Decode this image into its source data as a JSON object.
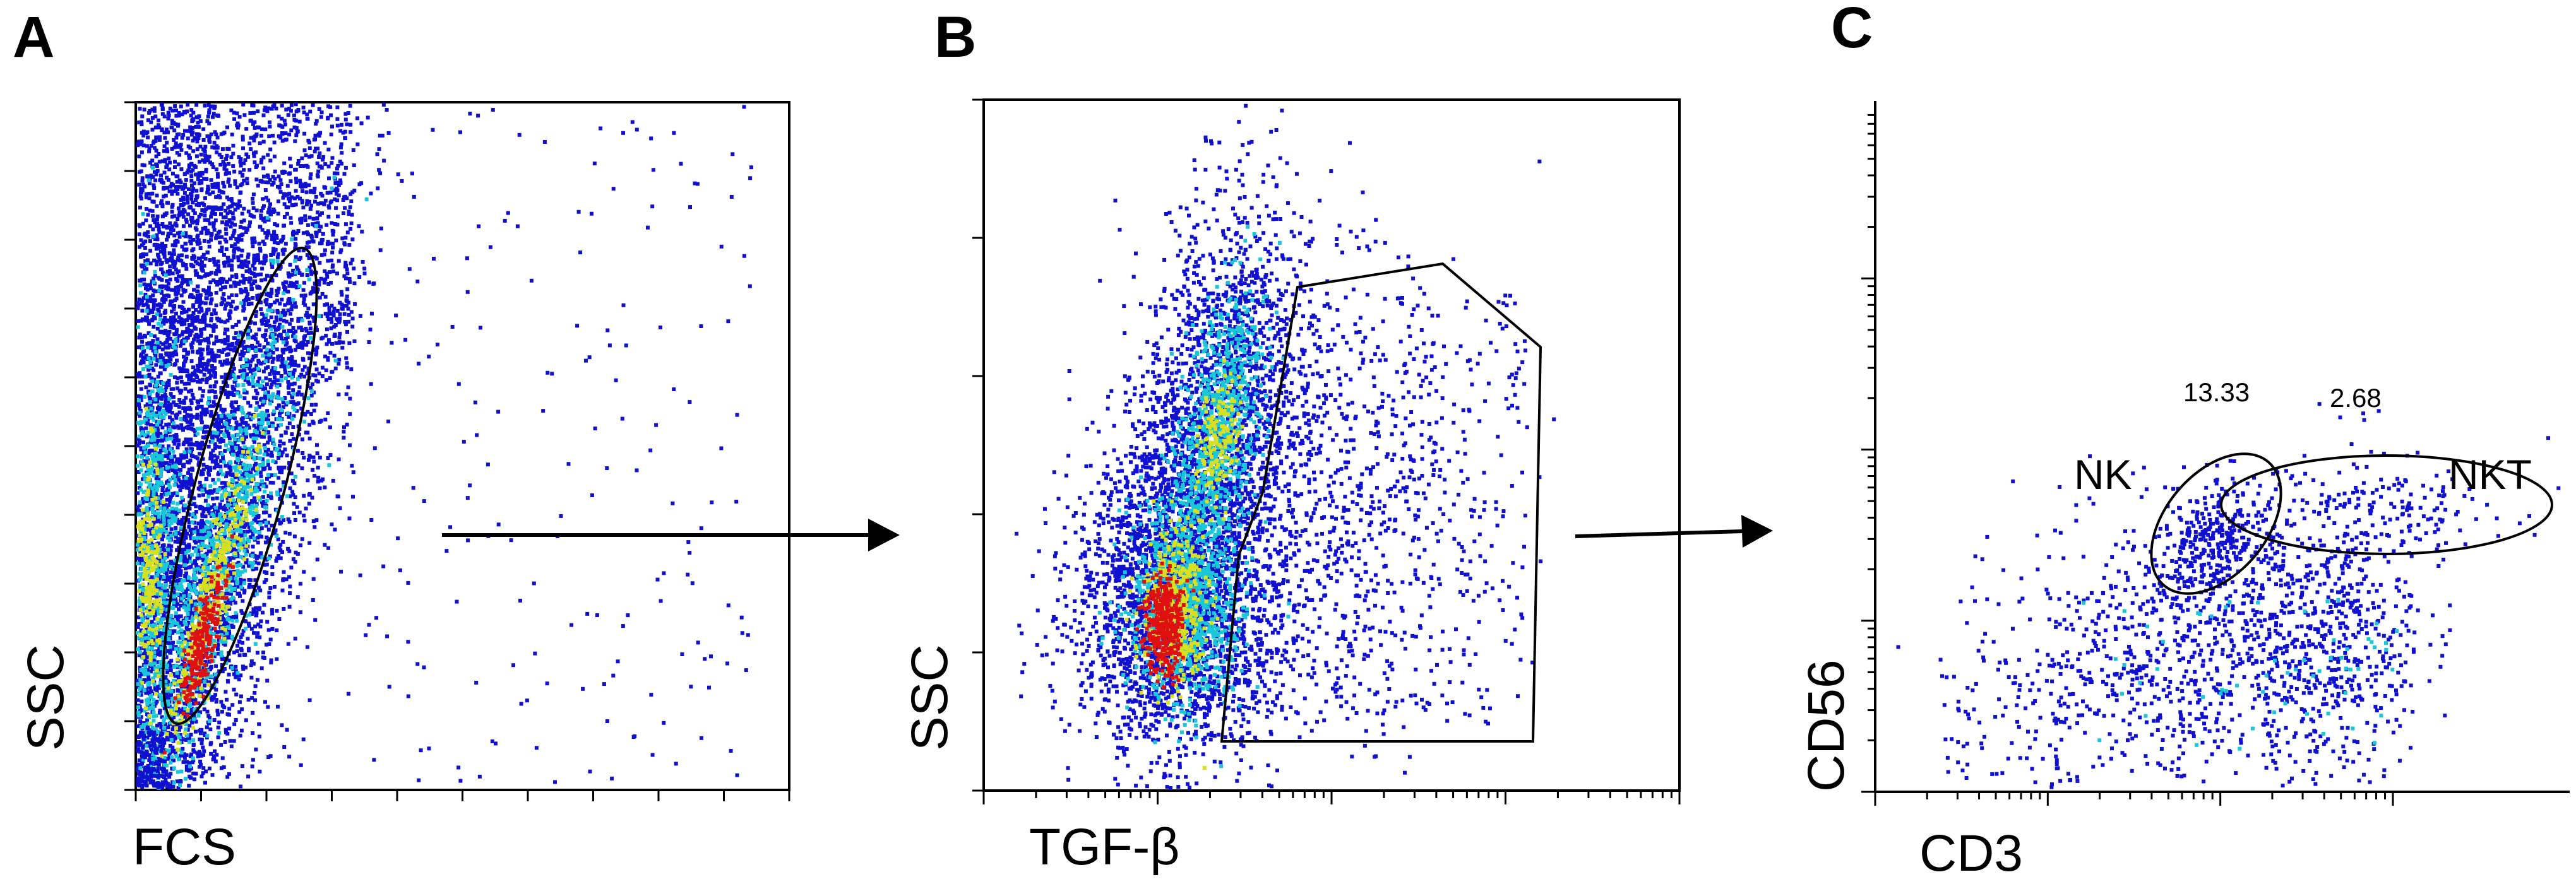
{
  "figure": {
    "panels": [
      {
        "id": "A",
        "letter": "A",
        "xlabel": "FCS",
        "ylabel": "SSC"
      },
      {
        "id": "B",
        "letter": "B",
        "xlabel": "TGF-β",
        "ylabel": "SSC"
      },
      {
        "id": "C",
        "letter": "C",
        "xlabel": "CD3",
        "ylabel": "CD56",
        "gates": [
          {
            "name": "NK",
            "percent": "13.33"
          },
          {
            "name": "NKT",
            "percent": "2.68"
          }
        ]
      }
    ],
    "colors": {
      "low_density": "#1010d0",
      "mid_density": "#18c8d8",
      "high_density": "#d8e020",
      "peak_density": "#e01010",
      "gate": "#000000",
      "axis": "#000000"
    }
  },
  "chart_data": [
    {
      "type": "scatter",
      "subtype": "flow-cytometry-density-plot",
      "panel": "A",
      "xlabel": "FCS",
      "ylabel": "SSC",
      "x_scale": "linear",
      "y_scale": "linear",
      "ticks_unlabeled": true,
      "populations": [
        {
          "description": "elongated diagonal population inside gate",
          "density": "high"
        },
        {
          "description": "left-edge population along SSC axis",
          "density": "high"
        }
      ],
      "gate": {
        "shape": "ellipse",
        "label": ""
      },
      "arrow": "to panel B"
    },
    {
      "type": "scatter",
      "subtype": "flow-cytometry-density-plot",
      "panel": "B",
      "xlabel": "TGF-β",
      "ylabel": "SSC",
      "x_scale": "log",
      "y_scale": "linear",
      "ticks_unlabeled": true,
      "gate": {
        "shape": "polygon",
        "label": ""
      },
      "arrow": "to panel C"
    },
    {
      "type": "scatter",
      "subtype": "flow-cytometry-density-plot",
      "panel": "C",
      "xlabel": "CD3",
      "ylabel": "CD56",
      "x_scale": "log",
      "y_scale": "log",
      "ticks_unlabeled": true,
      "gates": [
        {
          "name": "NK",
          "shape": "ellipse",
          "percent": 13.33
        },
        {
          "name": "NKT",
          "shape": "ellipse",
          "percent": 2.68
        }
      ]
    }
  ]
}
